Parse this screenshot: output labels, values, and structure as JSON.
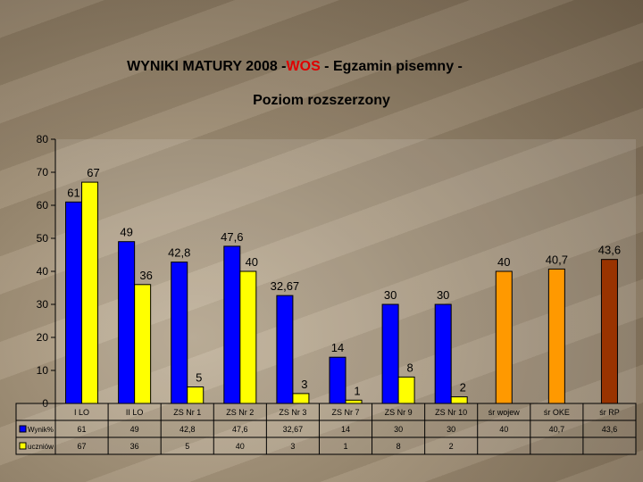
{
  "title": {
    "prefix": "WYNIKI MATURY 2008 -",
    "subject": "WOS",
    "suffix": "  - Egzamin pisemny -",
    "subject_color": "#e00000"
  },
  "subtitle": "Poziom rozszerzony",
  "chart_data": {
    "type": "bar",
    "categories": [
      "I LO",
      "II LO",
      "ZS Nr 1",
      "ZS Nr 2",
      "ZS Nr 3",
      "ZS Nr 7",
      "ZS Nr 9",
      "ZS Nr 10",
      "śr  wojew",
      "śr  OKE",
      "śr  RP"
    ],
    "series": [
      {
        "name": "Wynik%",
        "values": [
          61,
          49,
          42.8,
          47.6,
          32.67,
          14,
          30,
          30,
          40,
          40.7,
          43.6
        ],
        "color": "#0000ff"
      },
      {
        "name": "uczniów",
        "values": [
          67,
          36,
          5,
          40,
          3,
          1,
          8,
          2,
          null,
          null,
          null
        ],
        "color": "#ffff00"
      }
    ],
    "value_labels": {
      "Wynik%": [
        "61",
        "49",
        "42,8",
        "47,6",
        "32,67",
        "14",
        "30",
        "30",
        "40",
        "40,7",
        "43,6"
      ],
      "uczniów": [
        "67",
        "36",
        "5",
        "40",
        "3",
        "1",
        "8",
        "2",
        "",
        "",
        ""
      ]
    },
    "special_bar_colors": {
      "śr  wojew": "#ff9900",
      "śr  OKE": "#ff9900",
      "śr  RP": "#993300"
    },
    "y_ticks": [
      "0",
      "10",
      "20",
      "30",
      "40",
      "50",
      "60",
      "70",
      "80"
    ],
    "ylim": [
      0,
      80
    ],
    "grid": false,
    "legend": "table below chart",
    "data_table": {
      "Wynik%": [
        "61",
        "49",
        "42,8",
        "47,6",
        "32,67",
        "14",
        "30",
        "30",
        "40",
        "40,7",
        "43,6"
      ],
      "uczniów": [
        "67",
        "36",
        "5",
        "40",
        "3",
        "1",
        "8",
        "2",
        "",
        "",
        ""
      ]
    }
  }
}
